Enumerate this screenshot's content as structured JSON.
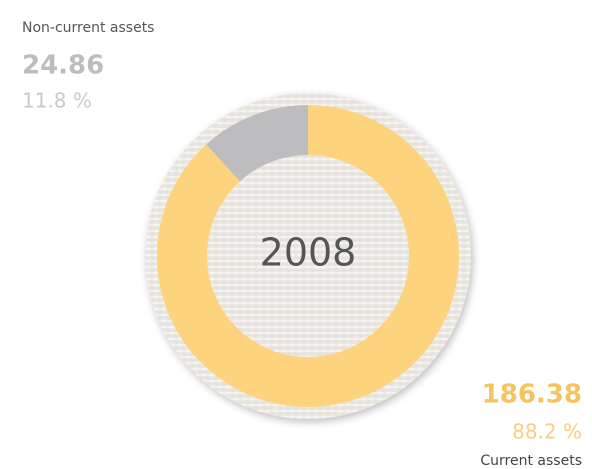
{
  "chart_data": {
    "type": "donut",
    "center_label": "2008",
    "categories": [
      "Non-current assets",
      "Current assets"
    ],
    "values": [
      24.86,
      186.38
    ],
    "percentages": [
      {
        "value": 11.8,
        "label": "11.8 %"
      },
      {
        "value": 88.2,
        "label": "88.2 %"
      }
    ],
    "colors": [
      "#bdbdbf",
      "#fdd47d"
    ],
    "label_colors": [
      "#bdbdbd",
      "#f6c35e"
    ]
  }
}
